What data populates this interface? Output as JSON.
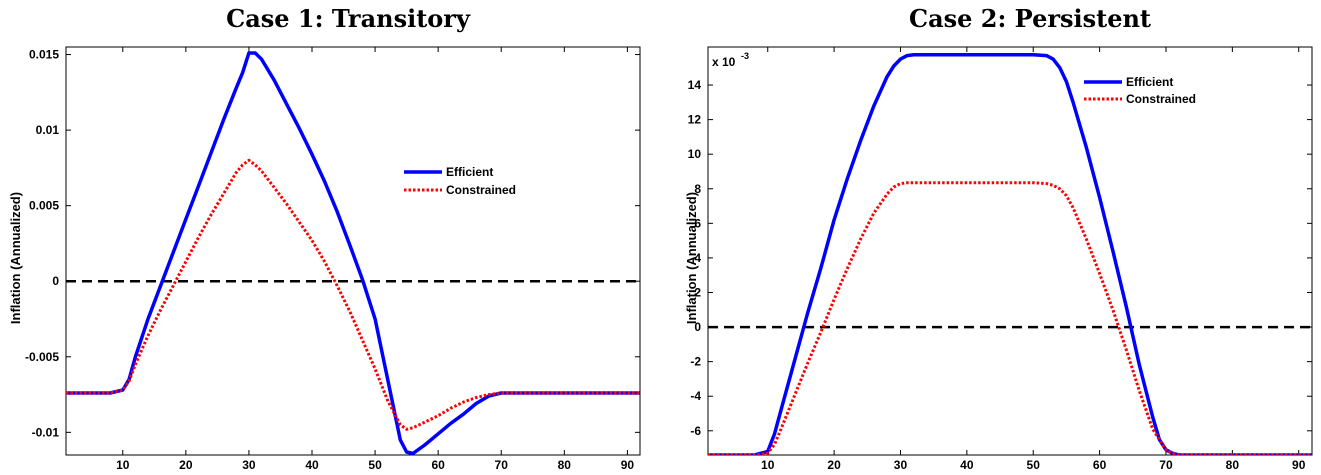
{
  "chart_data": [
    {
      "type": "line",
      "title": "Case 1: Transitory",
      "ylabel": "Inflation (Annualized)",
      "xlim": [
        1,
        92
      ],
      "ylim": [
        -0.0115,
        0.0155
      ],
      "xticks": [
        "10",
        "20",
        "30",
        "40",
        "50",
        "60",
        "70",
        "80",
        "90"
      ],
      "yticks": [
        "-0.01",
        "-0.005",
        "0",
        "0.005",
        "0.01",
        "0.015"
      ],
      "ytick_values": [
        -0.01,
        -0.005,
        0,
        0.005,
        0.01,
        0.015
      ],
      "legend": "right",
      "zero_line": 0,
      "series": [
        {
          "name": "Efficient",
          "color": "#0000ff",
          "style": "solid",
          "x": [
            1,
            8,
            10,
            11,
            12,
            14,
            16,
            18,
            20,
            22,
            24,
            26,
            28,
            29,
            30,
            31,
            32,
            34,
            36,
            38,
            40,
            42,
            44,
            46,
            48,
            50,
            52,
            53,
            54,
            55,
            56,
            58,
            60,
            62,
            64,
            66,
            68,
            70,
            75,
            80,
            85,
            92
          ],
          "y": [
            -0.0074,
            -0.0074,
            -0.0072,
            -0.0065,
            -0.005,
            -0.0025,
            -0.0003,
            0.0019,
            0.0041,
            0.0063,
            0.0085,
            0.0107,
            0.0128,
            0.0138,
            0.0151,
            0.0151,
            0.0147,
            0.0133,
            0.0117,
            0.0101,
            0.0084,
            0.0066,
            0.0046,
            0.0024,
            0.0001,
            -0.0025,
            -0.0065,
            -0.0085,
            -0.0105,
            -0.0113,
            -0.0114,
            -0.0108,
            -0.0101,
            -0.0094,
            -0.0088,
            -0.0081,
            -0.0076,
            -0.0074,
            -0.0074,
            -0.0074,
            -0.0074,
            -0.0074
          ]
        },
        {
          "name": "Constrained",
          "color": "#ff0000",
          "style": "dotted",
          "x": [
            1,
            8,
            10,
            11,
            12,
            14,
            16,
            18,
            20,
            22,
            24,
            26,
            28,
            29,
            30,
            31,
            32,
            34,
            36,
            38,
            40,
            42,
            44,
            46,
            48,
            50,
            52,
            54,
            55,
            56,
            58,
            60,
            62,
            64,
            66,
            68,
            70,
            75,
            80,
            85,
            92
          ],
          "y": [
            -0.0074,
            -0.0074,
            -0.0072,
            -0.0066,
            -0.0055,
            -0.0036,
            -0.0019,
            -0.0003,
            0.0013,
            0.0029,
            0.0044,
            0.0058,
            0.0072,
            0.0077,
            0.008,
            0.0077,
            0.0073,
            0.0062,
            0.0051,
            0.0039,
            0.0027,
            0.0013,
            -0.0003,
            -0.002,
            -0.0039,
            -0.0058,
            -0.0079,
            -0.0095,
            -0.0098,
            -0.0097,
            -0.0093,
            -0.0089,
            -0.0084,
            -0.008,
            -0.0077,
            -0.0075,
            -0.0074,
            -0.0074,
            -0.0074,
            -0.0074,
            -0.0074
          ]
        }
      ]
    },
    {
      "type": "line",
      "title": "Case 2: Persistent",
      "ylabel": "Inflation (Annualized)",
      "exponent_label": "x 10",
      "exponent_sup": "-3",
      "xlim": [
        1,
        92
      ],
      "ylim": [
        -7.4,
        16.2
      ],
      "xticks": [
        "10",
        "20",
        "30",
        "40",
        "50",
        "60",
        "70",
        "80",
        "90"
      ],
      "yticks": [
        "-6",
        "-4",
        "-2",
        "0",
        "2",
        "4",
        "6",
        "8",
        "10",
        "12",
        "14"
      ],
      "ytick_values": [
        -6,
        -4,
        -2,
        0,
        2,
        4,
        6,
        8,
        10,
        12,
        14
      ],
      "legend": "top-right",
      "zero_line": 0,
      "series": [
        {
          "name": "Efficient",
          "color": "#0000ff",
          "style": "solid",
          "x": [
            1,
            8,
            10,
            11,
            12,
            14,
            16,
            18,
            20,
            22,
            24,
            26,
            28,
            29,
            30,
            31,
            32,
            35,
            40,
            45,
            50,
            52,
            53,
            54,
            55,
            56,
            58,
            60,
            62,
            64,
            66,
            68,
            69,
            70,
            71,
            72,
            75,
            80,
            85,
            92
          ],
          "y": [
            -7.4,
            -7.4,
            -7.2,
            -6.2,
            -4.8,
            -2.0,
            0.8,
            3.4,
            6.2,
            8.6,
            10.8,
            12.8,
            14.5,
            15.1,
            15.5,
            15.7,
            15.75,
            15.75,
            15.75,
            15.75,
            15.75,
            15.7,
            15.5,
            15.0,
            14.2,
            13.0,
            10.4,
            7.5,
            4.4,
            1.2,
            -2.2,
            -5.2,
            -6.5,
            -7.1,
            -7.3,
            -7.4,
            -7.4,
            -7.4,
            -7.4,
            -7.4
          ]
        },
        {
          "name": "Constrained",
          "color": "#ff0000",
          "style": "dotted",
          "x": [
            1,
            8,
            10,
            11,
            12,
            14,
            16,
            18,
            20,
            22,
            24,
            26,
            28,
            29,
            30,
            31,
            35,
            40,
            45,
            50,
            52,
            53,
            54,
            55,
            56,
            58,
            60,
            62,
            64,
            66,
            68,
            70,
            71,
            72,
            75,
            80,
            85,
            92
          ],
          "y": [
            -7.4,
            -7.4,
            -7.3,
            -6.8,
            -5.9,
            -4.0,
            -2.1,
            -0.3,
            1.6,
            3.4,
            5.1,
            6.6,
            7.7,
            8.1,
            8.3,
            8.35,
            8.35,
            8.35,
            8.35,
            8.35,
            8.3,
            8.2,
            8.0,
            7.6,
            6.9,
            5.1,
            3.1,
            1.0,
            -1.3,
            -3.7,
            -5.9,
            -7.1,
            -7.3,
            -7.4,
            -7.4,
            -7.4,
            -7.4,
            -7.4
          ]
        }
      ]
    }
  ]
}
